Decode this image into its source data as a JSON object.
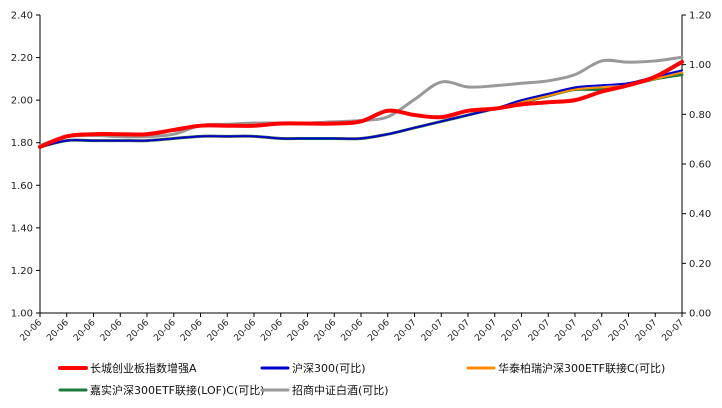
{
  "chart_data": {
    "type": "line",
    "title": "",
    "xlabel": "",
    "ylabel": "",
    "x": [
      "20-06",
      "20-06",
      "20-06",
      "20-06",
      "20-06",
      "20-06",
      "20-06",
      "20-06",
      "20-06",
      "20-06",
      "20-06",
      "20-06",
      "20-06",
      "20-06",
      "20-07",
      "20-07",
      "20-07",
      "20-07",
      "20-07",
      "20-07",
      "20-07",
      "20-07",
      "20-07",
      "20-07",
      "20-07"
    ],
    "ylim_left": [
      1.0,
      2.4
    ],
    "yticks_left": [
      "1.00",
      "1.20",
      "1.40",
      "1.60",
      "1.80",
      "2.00",
      "2.20",
      "2.40"
    ],
    "ylim_right": [
      0.0,
      1.2
    ],
    "yticks_right": [
      "0.00",
      "0.20",
      "0.40",
      "0.60",
      "0.80",
      "1.00",
      "1.20"
    ],
    "legend_position": "bottom",
    "grid": false,
    "series": [
      {
        "name": "长城创业板指数增强A",
        "color": "#ff0000",
        "width": 4,
        "axis": "left",
        "points": [
          [
            0,
            1.78
          ],
          [
            1,
            1.83
          ],
          [
            2,
            1.84
          ],
          [
            3,
            1.84
          ],
          [
            4,
            1.84
          ],
          [
            5,
            1.86
          ],
          [
            6,
            1.88
          ],
          [
            7,
            1.88
          ],
          [
            8,
            1.88
          ],
          [
            9,
            1.89
          ],
          [
            10,
            1.89
          ],
          [
            11,
            1.89
          ],
          [
            12,
            1.9
          ],
          [
            13,
            1.95
          ],
          [
            14,
            1.93
          ],
          [
            15,
            1.92
          ],
          [
            16,
            1.95
          ],
          [
            17,
            1.96
          ],
          [
            18,
            1.98
          ],
          [
            19,
            1.99
          ],
          [
            20,
            2.0
          ],
          [
            21,
            2.04
          ],
          [
            22,
            2.07
          ],
          [
            23,
            2.11
          ],
          [
            24,
            2.18
          ]
        ]
      },
      {
        "name": "沪深300(可比)",
        "color": "#0000cc",
        "width": 2,
        "axis": "left",
        "points": [
          [
            0,
            1.78
          ],
          [
            1,
            1.81
          ],
          [
            2,
            1.81
          ],
          [
            3,
            1.81
          ],
          [
            4,
            1.81
          ],
          [
            5,
            1.82
          ],
          [
            6,
            1.83
          ],
          [
            7,
            1.83
          ],
          [
            8,
            1.83
          ],
          [
            9,
            1.82
          ],
          [
            10,
            1.82
          ],
          [
            11,
            1.82
          ],
          [
            12,
            1.82
          ],
          [
            13,
            1.84
          ],
          [
            14,
            1.87
          ],
          [
            15,
            1.9
          ],
          [
            16,
            1.93
          ],
          [
            17,
            1.96
          ],
          [
            18,
            2.0
          ],
          [
            19,
            2.03
          ],
          [
            20,
            2.06
          ],
          [
            21,
            2.07
          ],
          [
            22,
            2.08
          ],
          [
            23,
            2.11
          ],
          [
            24,
            2.14
          ]
        ]
      },
      {
        "name": "华泰柏瑞沪深300ETF联接C(可比)",
        "color": "#ff8c00",
        "width": 2,
        "axis": "left",
        "points": [
          [
            0,
            1.78
          ],
          [
            1,
            1.81
          ],
          [
            2,
            1.81
          ],
          [
            3,
            1.81
          ],
          [
            4,
            1.81
          ],
          [
            5,
            1.82
          ],
          [
            6,
            1.83
          ],
          [
            7,
            1.83
          ],
          [
            8,
            1.83
          ],
          [
            9,
            1.82
          ],
          [
            10,
            1.82
          ],
          [
            11,
            1.82
          ],
          [
            12,
            1.82
          ],
          [
            13,
            1.84
          ],
          [
            14,
            1.87
          ],
          [
            15,
            1.9
          ],
          [
            16,
            1.93
          ],
          [
            17,
            1.96
          ],
          [
            18,
            1.99
          ],
          [
            19,
            2.02
          ],
          [
            20,
            2.05
          ],
          [
            21,
            2.06
          ],
          [
            22,
            2.07
          ],
          [
            23,
            2.1
          ],
          [
            24,
            2.13
          ]
        ]
      },
      {
        "name": "嘉实沪深300ETF联接(LOF)C(可比)",
        "color": "#1a7a3a",
        "width": 3,
        "axis": "left",
        "points": [
          [
            0,
            1.78
          ],
          [
            1,
            1.81
          ],
          [
            2,
            1.81
          ],
          [
            3,
            1.81
          ],
          [
            4,
            1.81
          ],
          [
            5,
            1.82
          ],
          [
            6,
            1.83
          ],
          [
            7,
            1.83
          ],
          [
            8,
            1.83
          ],
          [
            9,
            1.82
          ],
          [
            10,
            1.82
          ],
          [
            11,
            1.82
          ],
          [
            12,
            1.82
          ],
          [
            13,
            1.84
          ],
          [
            14,
            1.87
          ],
          [
            15,
            1.9
          ],
          [
            16,
            1.93
          ],
          [
            17,
            1.96
          ],
          [
            18,
            1.99
          ],
          [
            19,
            2.02
          ],
          [
            20,
            2.05
          ],
          [
            21,
            2.05
          ],
          [
            22,
            2.07
          ],
          [
            23,
            2.1
          ],
          [
            24,
            2.12
          ]
        ]
      },
      {
        "name": "招商中证白酒(可比)",
        "color": "#999999",
        "width": 3,
        "axis": "right",
        "points": [
          [
            0,
            0.675
          ],
          [
            1,
            0.71
          ],
          [
            2,
            0.715
          ],
          [
            3,
            0.71
          ],
          [
            4,
            0.71
          ],
          [
            5,
            0.72
          ],
          [
            6,
            0.755
          ],
          [
            7,
            0.76
          ],
          [
            8,
            0.765
          ],
          [
            9,
            0.765
          ],
          [
            10,
            0.765
          ],
          [
            11,
            0.77
          ],
          [
            12,
            0.775
          ],
          [
            13,
            0.79
          ],
          [
            14,
            0.86
          ],
          [
            15,
            0.93
          ],
          [
            16,
            0.91
          ],
          [
            17,
            0.915
          ],
          [
            18,
            0.925
          ],
          [
            19,
            0.935
          ],
          [
            20,
            0.96
          ],
          [
            21,
            1.015
          ],
          [
            22,
            1.01
          ],
          [
            23,
            1.015
          ],
          [
            24,
            1.03
          ]
        ]
      }
    ]
  }
}
